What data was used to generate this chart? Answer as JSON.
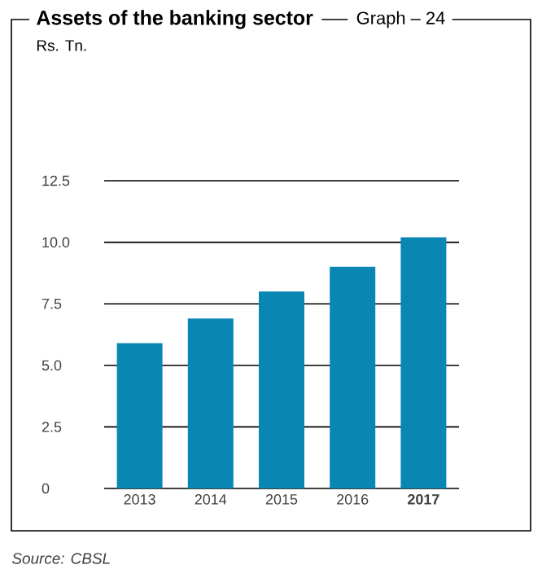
{
  "chart_data": {
    "type": "bar",
    "title": "Assets of the banking sector",
    "subtitle": "Graph – 24",
    "categories": [
      "2013",
      "2014",
      "2015",
      "2016",
      "**2017**"
    ],
    "values": [
      5.9,
      6.9,
      8.0,
      9.0,
      10.2
    ],
    "color": "#0a86b4",
    "ylim": [
      0,
      12.5
    ],
    "yticks": [
      0,
      2.5,
      {
        "value": 5,
        "label": "5.0"
      },
      7.5,
      {
        "value": 10,
        "label": "10.0"
      },
      12.5
    ],
    "grid": "y",
    "annotations": [
      "Rs. Tn.",
      "Source: CBSL"
    ]
  }
}
